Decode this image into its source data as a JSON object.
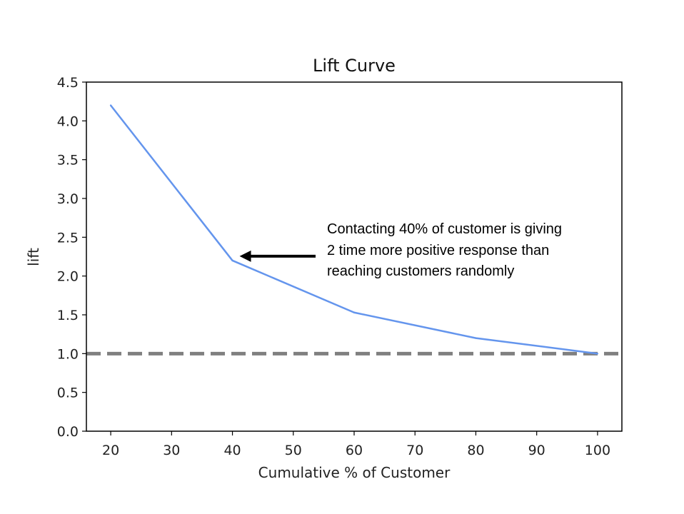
{
  "chart_data": {
    "type": "line",
    "title": "Lift Curve",
    "xlabel": "Cumulative % of Customer",
    "ylabel": "lift",
    "x": [
      20,
      40,
      60,
      80,
      100
    ],
    "series": [
      {
        "values": [
          4.2,
          2.2,
          1.53,
          1.2,
          1.0
        ],
        "color": "#6495ED"
      }
    ],
    "baseline": {
      "value": 1.0,
      "color": "#808080",
      "style": "dashed"
    },
    "xlim": [
      16,
      104
    ],
    "ylim": [
      0,
      4.5
    ],
    "xticks": [
      20,
      30,
      40,
      50,
      60,
      70,
      80,
      90,
      100
    ],
    "yticks": [
      "0.0",
      "0.5",
      "1.0",
      "1.5",
      "2.0",
      "2.5",
      "3.0",
      "3.5",
      "4.0",
      "4.5"
    ],
    "grid": false,
    "annotation": {
      "lines": [
        "Contacting 40% of customer is giving",
        "2 time more positive response than",
        "reaching customers randomly"
      ],
      "target_x": 40,
      "target_y": 2.2
    }
  }
}
